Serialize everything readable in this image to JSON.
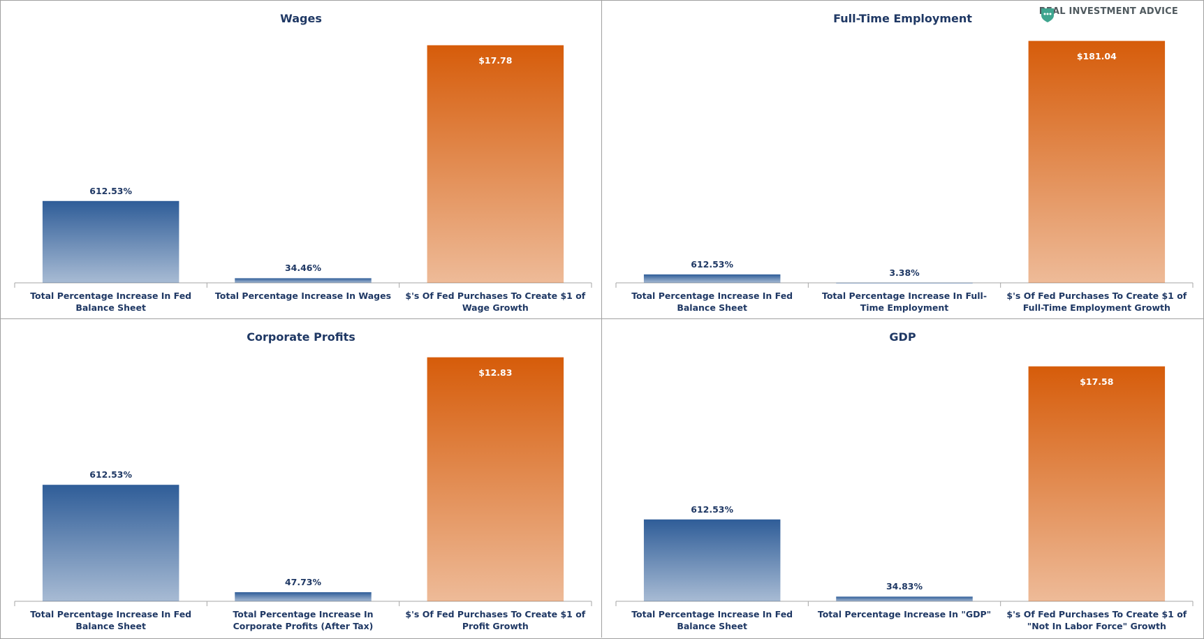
{
  "brand": "REAL INVESTMENT ADVICE",
  "chart_data": [
    {
      "type": "bar",
      "title": "Wages",
      "categories": [
        "Total Percentage Increase In Fed Balance Sheet",
        "Total Percentage Increase In Wages",
        "$'s Of Fed Purchases To Create $1 of Wage Growth"
      ],
      "series": [
        {
          "color": "#2f5d98",
          "values": [
            612.53,
            34.46,
            null
          ],
          "value_labels": [
            "612.53%",
            "34.46%",
            null
          ]
        },
        {
          "color": "#d65c0a",
          "axis": "y2",
          "values": [
            null,
            null,
            17.78
          ],
          "value_labels": [
            null,
            null,
            "$17.78"
          ]
        }
      ],
      "ylim": [
        0,
        1850
      ],
      "y2lim": [
        0,
        18.5
      ]
    },
    {
      "type": "bar",
      "title": "Full-Time Employment",
      "categories": [
        "Total Percentage Increase In Fed Balance Sheet",
        "Total Percentage Increase In Full-Time Employment",
        "$'s Of Fed Purchases To Create $1 of Full-Time Employment Growth"
      ],
      "series": [
        {
          "color": "#2f5d98",
          "values": [
            612.53,
            3.38,
            null
          ],
          "value_labels": [
            "612.53%",
            "3.38%",
            null
          ]
        },
        {
          "color": "#d65c0a",
          "axis": "y2",
          "values": [
            null,
            null,
            181.04
          ],
          "value_labels": [
            null,
            null,
            "$181.04"
          ]
        }
      ],
      "ylim": [
        0,
        18000
      ],
      "y2lim": [
        0,
        185
      ]
    },
    {
      "type": "bar",
      "title": "Corporate Profits",
      "categories": [
        "Total Percentage Increase In Fed Balance Sheet",
        "Total Percentage Increase In Corporate Profits (After Tax)",
        "$'s Of Fed Purchases To Create $1 of Profit Growth"
      ],
      "series": [
        {
          "color": "#2f5d98",
          "values": [
            612.53,
            47.73,
            null
          ],
          "value_labels": [
            "612.53%",
            "47.73%",
            null
          ]
        },
        {
          "color": "#d65c0a",
          "axis": "y2",
          "values": [
            null,
            null,
            12.83
          ],
          "value_labels": [
            null,
            null,
            "$12.83"
          ]
        }
      ],
      "ylim": [
        0,
        1300
      ],
      "y2lim": [
        0,
        13
      ]
    },
    {
      "type": "bar",
      "title": "GDP",
      "categories": [
        "Total Percentage Increase In Fed Balance Sheet",
        "Total Percentage Increase In \"GDP\"",
        "$'s Of Fed Purchases To Create $1 of \"Not In Labor Force\" Growth"
      ],
      "series": [
        {
          "color": "#2f5d98",
          "values": [
            612.53,
            34.83,
            null
          ],
          "value_labels": [
            "612.53%",
            "34.83%",
            null
          ]
        },
        {
          "color": "#d65c0a",
          "axis": "y2",
          "values": [
            null,
            null,
            17.58
          ],
          "value_labels": [
            null,
            null,
            "$17.58"
          ]
        }
      ],
      "ylim": [
        0,
        1850
      ],
      "y2lim": [
        0,
        18.5
      ]
    }
  ]
}
